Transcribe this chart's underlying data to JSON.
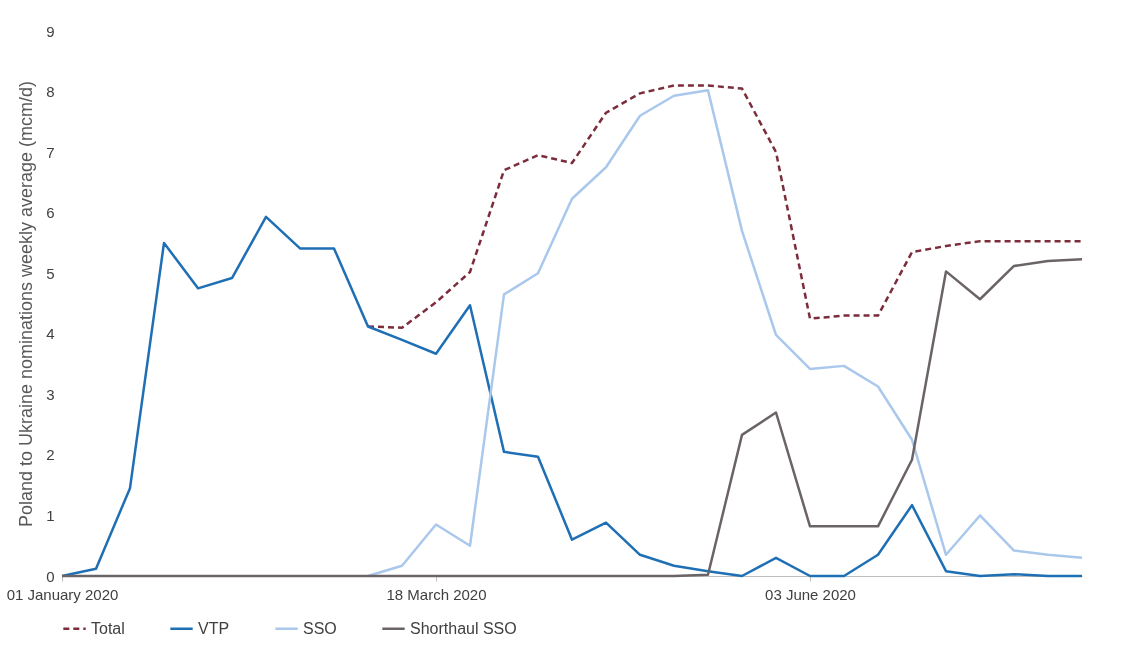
{
  "chart_data": {
    "type": "line",
    "ylabel": "Poland to Ukraine nominations weekly average (mcm/d)",
    "x": [
      "2020-01-01",
      "2020-01-08",
      "2020-01-15",
      "2020-01-22",
      "2020-01-29",
      "2020-02-05",
      "2020-02-12",
      "2020-02-19",
      "2020-02-26",
      "2020-03-04",
      "2020-03-11",
      "2020-03-18",
      "2020-03-25",
      "2020-04-01",
      "2020-04-08",
      "2020-04-15",
      "2020-04-22",
      "2020-04-29",
      "2020-05-06",
      "2020-05-13",
      "2020-05-20",
      "2020-05-27",
      "2020-06-03",
      "2020-06-10",
      "2020-06-17",
      "2020-06-24",
      "2020-07-01",
      "2020-07-08",
      "2020-07-15",
      "2020-07-22",
      "2020-07-29"
    ],
    "series": [
      {
        "name": "Total",
        "color": "#7b2d3b",
        "line_style": "dashed",
        "values": [
          null,
          null,
          null,
          null,
          null,
          null,
          null,
          null,
          null,
          4.12,
          4.1,
          4.52,
          5.02,
          6.7,
          6.95,
          6.82,
          7.65,
          7.97,
          8.1,
          8.1,
          8.05,
          7.0,
          4.25,
          4.3,
          4.3,
          5.35,
          5.45,
          5.53,
          5.53,
          5.53,
          5.53
        ]
      },
      {
        "name": "VTP",
        "color": "#1f6fb5",
        "line_style": "solid",
        "values": [
          0,
          0.12,
          1.45,
          5.5,
          4.75,
          4.92,
          5.93,
          5.41,
          5.41,
          4.12,
          3.9,
          3.67,
          4.47,
          2.05,
          1.97,
          0.6,
          0.88,
          0.35,
          0.17,
          0.08,
          0,
          0.3,
          0,
          0,
          0.35,
          1.17,
          0.08,
          0,
          0.03,
          0,
          0
        ]
      },
      {
        "name": "SSO",
        "color": "#a9c8ec",
        "line_style": "solid",
        "values": [
          null,
          null,
          null,
          null,
          null,
          null,
          null,
          null,
          null,
          0,
          0.17,
          0.85,
          0.5,
          4.65,
          5.0,
          6.23,
          6.75,
          7.6,
          7.93,
          8.02,
          5.7,
          3.98,
          3.42,
          3.47,
          3.13,
          2.25,
          0.35,
          1.0,
          0.42,
          0.35,
          0.3
        ]
      },
      {
        "name": "Shorthaul SSO",
        "color": "#6b6466",
        "line_style": "solid",
        "values": [
          0,
          0,
          0,
          0,
          0,
          0,
          0,
          0,
          0,
          0,
          0,
          0,
          0,
          0,
          0,
          0,
          0,
          0,
          0,
          0.02,
          2.33,
          2.7,
          0.82,
          0.82,
          0.82,
          1.92,
          5.03,
          4.57,
          5.12,
          5.2,
          5.23
        ]
      }
    ],
    "xlim": [
      "2020-01-01",
      "2020-07-29"
    ],
    "xticks": [
      {
        "value": "2020-01-01",
        "label": "01 January 2020"
      },
      {
        "value": "2020-03-18",
        "label": "18 March 2020"
      },
      {
        "value": "2020-06-03",
        "label": "03 June 2020"
      }
    ],
    "ylim": [
      0,
      9
    ],
    "yticks": [
      0,
      1,
      2,
      3,
      4,
      5,
      6,
      7,
      8,
      9
    ],
    "grid": false,
    "legend": "bottom"
  }
}
